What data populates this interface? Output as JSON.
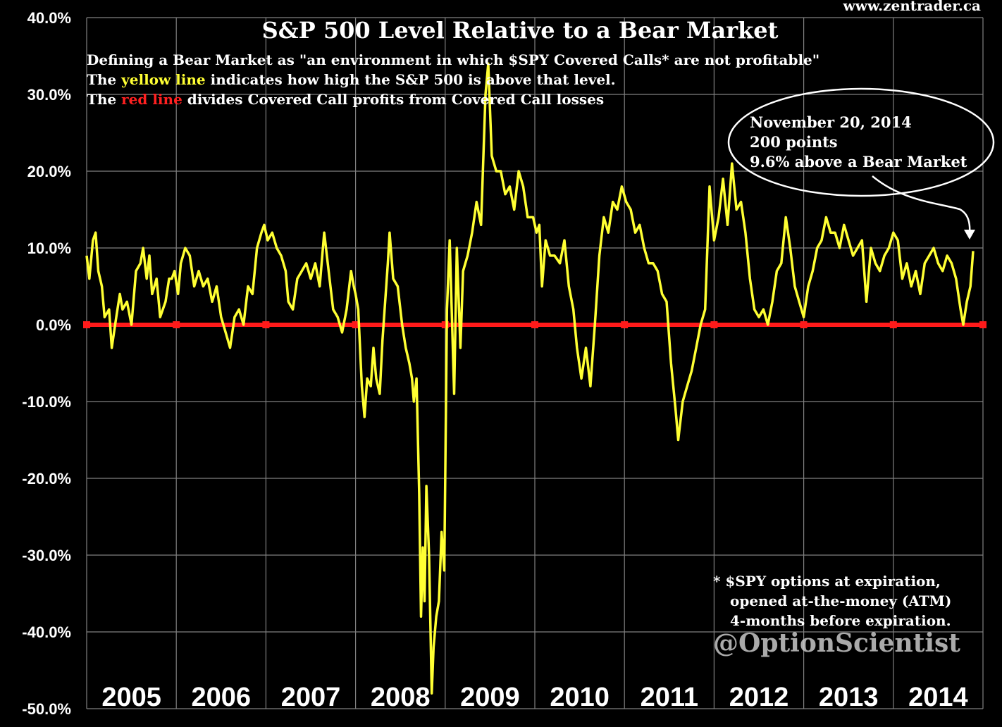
{
  "source": "www.zentrader.ca",
  "subtitle": {
    "line1": "Defining a Bear Market as \"an environment in which $SPY Covered Calls* are not profitable\"",
    "line2_pre": "The ",
    "line2_hl": "yellow line",
    "line2_post": " indicates how high the S&P 500 is above that level.",
    "line3_pre": "The ",
    "line3_hl": "red line",
    "line3_post": " divides Covered Call profits from Covered Call losses"
  },
  "annotation": {
    "line1": "November 20, 2014",
    "line2": "200 points",
    "line3": "9.6% above a Bear Market"
  },
  "footnote": {
    "line1": "* $SPY options at expiration,",
    "line2": "opened at-the-money (ATM)",
    "line3": "4-months before expiration."
  },
  "watermark": "@OptionScientist",
  "colors": {
    "background": "#000000",
    "series": "#ffff33",
    "zero_line": "#ff1a1a",
    "grid": "#808080"
  },
  "chart_data": {
    "type": "line",
    "title": "S&P 500 Level Relative to a Bear Market",
    "xlabel": "",
    "ylabel": "",
    "ylim": [
      -50,
      40
    ],
    "xlim": [
      2005,
      2015
    ],
    "y_ticks": [
      "40.0%",
      "30.0%",
      "20.0%",
      "10.0%",
      "0.0%",
      "-10.0%",
      "-20.0%",
      "-30.0%",
      "-40.0%",
      "-50.0%"
    ],
    "y_tick_values": [
      40,
      30,
      20,
      10,
      0,
      -10,
      -20,
      -30,
      -40,
      -50
    ],
    "x_labels": [
      "2005",
      "2006",
      "2007",
      "2008",
      "2009",
      "2010",
      "2011",
      "2012",
      "2013",
      "2014"
    ],
    "reference_line": {
      "name": "red line",
      "value": 0
    },
    "series": [
      {
        "name": "yellow line",
        "points": [
          [
            2005.0,
            9
          ],
          [
            2005.03,
            6
          ],
          [
            2005.07,
            11
          ],
          [
            2005.1,
            12
          ],
          [
            2005.13,
            7
          ],
          [
            2005.17,
            5
          ],
          [
            2005.2,
            1
          ],
          [
            2005.25,
            2
          ],
          [
            2005.28,
            -3
          ],
          [
            2005.33,
            1
          ],
          [
            2005.37,
            4
          ],
          [
            2005.4,
            2
          ],
          [
            2005.45,
            3
          ],
          [
            2005.5,
            0
          ],
          [
            2005.55,
            7
          ],
          [
            2005.6,
            8
          ],
          [
            2005.63,
            10
          ],
          [
            2005.67,
            6
          ],
          [
            2005.7,
            9
          ],
          [
            2005.73,
            4
          ],
          [
            2005.78,
            6
          ],
          [
            2005.82,
            1
          ],
          [
            2005.88,
            3
          ],
          [
            2005.92,
            6
          ],
          [
            2005.95,
            6
          ],
          [
            2005.98,
            7
          ],
          [
            2006.02,
            4
          ],
          [
            2006.05,
            8
          ],
          [
            2006.1,
            10
          ],
          [
            2006.15,
            9
          ],
          [
            2006.2,
            5
          ],
          [
            2006.25,
            7
          ],
          [
            2006.3,
            5
          ],
          [
            2006.35,
            6
          ],
          [
            2006.4,
            3
          ],
          [
            2006.45,
            5
          ],
          [
            2006.5,
            1
          ],
          [
            2006.55,
            -1
          ],
          [
            2006.6,
            -3
          ],
          [
            2006.65,
            1
          ],
          [
            2006.7,
            2
          ],
          [
            2006.75,
            0
          ],
          [
            2006.8,
            5
          ],
          [
            2006.85,
            4
          ],
          [
            2006.9,
            10
          ],
          [
            2006.95,
            12
          ],
          [
            2006.98,
            13
          ],
          [
            2007.02,
            11
          ],
          [
            2007.07,
            12
          ],
          [
            2007.12,
            10
          ],
          [
            2007.17,
            9
          ],
          [
            2007.22,
            7
          ],
          [
            2007.25,
            3
          ],
          [
            2007.3,
            2
          ],
          [
            2007.35,
            6
          ],
          [
            2007.4,
            7
          ],
          [
            2007.45,
            8
          ],
          [
            2007.5,
            6
          ],
          [
            2007.55,
            8
          ],
          [
            2007.6,
            5
          ],
          [
            2007.65,
            12
          ],
          [
            2007.7,
            7
          ],
          [
            2007.75,
            2
          ],
          [
            2007.8,
            1
          ],
          [
            2007.85,
            -1
          ],
          [
            2007.9,
            2
          ],
          [
            2007.95,
            7
          ],
          [
            2007.98,
            5
          ],
          [
            2008.0,
            4
          ],
          [
            2008.03,
            2
          ],
          [
            2008.07,
            -8
          ],
          [
            2008.1,
            -12
          ],
          [
            2008.13,
            -7
          ],
          [
            2008.17,
            -8
          ],
          [
            2008.2,
            -3
          ],
          [
            2008.23,
            -7
          ],
          [
            2008.27,
            -9
          ],
          [
            2008.3,
            -2
          ],
          [
            2008.33,
            3
          ],
          [
            2008.36,
            8
          ],
          [
            2008.38,
            12
          ],
          [
            2008.42,
            6
          ],
          [
            2008.47,
            5
          ],
          [
            2008.52,
            0
          ],
          [
            2008.56,
            -3
          ],
          [
            2008.6,
            -5
          ],
          [
            2008.63,
            -7
          ],
          [
            2008.65,
            -10
          ],
          [
            2008.68,
            -7
          ],
          [
            2008.71,
            -22
          ],
          [
            2008.73,
            -38
          ],
          [
            2008.75,
            -29
          ],
          [
            2008.77,
            -36
          ],
          [
            2008.79,
            -21
          ],
          [
            2008.82,
            -30
          ],
          [
            2008.85,
            -48
          ],
          [
            2008.87,
            -42
          ],
          [
            2008.9,
            -38
          ],
          [
            2008.93,
            -36
          ],
          [
            2008.96,
            -27
          ],
          [
            2008.99,
            -32
          ],
          [
            2009.02,
            2
          ],
          [
            2009.05,
            11
          ],
          [
            2009.1,
            -9
          ],
          [
            2009.13,
            10
          ],
          [
            2009.17,
            -3
          ],
          [
            2009.2,
            7
          ],
          [
            2009.25,
            9
          ],
          [
            2009.3,
            12
          ],
          [
            2009.35,
            16
          ],
          [
            2009.4,
            13
          ],
          [
            2009.45,
            30
          ],
          [
            2009.48,
            34
          ],
          [
            2009.52,
            22
          ],
          [
            2009.57,
            20
          ],
          [
            2009.62,
            20
          ],
          [
            2009.67,
            17
          ],
          [
            2009.72,
            18
          ],
          [
            2009.77,
            15
          ],
          [
            2009.82,
            20
          ],
          [
            2009.87,
            18
          ],
          [
            2009.92,
            14
          ],
          [
            2009.98,
            14
          ],
          [
            2010.02,
            12
          ],
          [
            2010.05,
            13
          ],
          [
            2010.08,
            5
          ],
          [
            2010.12,
            11
          ],
          [
            2010.17,
            9
          ],
          [
            2010.22,
            9
          ],
          [
            2010.28,
            8
          ],
          [
            2010.33,
            11
          ],
          [
            2010.38,
            5
          ],
          [
            2010.43,
            2
          ],
          [
            2010.47,
            -3
          ],
          [
            2010.52,
            -7
          ],
          [
            2010.57,
            -3
          ],
          [
            2010.62,
            -8
          ],
          [
            2010.67,
            0
          ],
          [
            2010.72,
            9
          ],
          [
            2010.77,
            14
          ],
          [
            2010.82,
            12
          ],
          [
            2010.87,
            16
          ],
          [
            2010.92,
            15
          ],
          [
            2010.97,
            18
          ],
          [
            2011.02,
            16
          ],
          [
            2011.07,
            15
          ],
          [
            2011.12,
            12
          ],
          [
            2011.17,
            13
          ],
          [
            2011.22,
            10
          ],
          [
            2011.27,
            8
          ],
          [
            2011.32,
            8
          ],
          [
            2011.37,
            7
          ],
          [
            2011.42,
            4
          ],
          [
            2011.47,
            3
          ],
          [
            2011.52,
            -5
          ],
          [
            2011.57,
            -11
          ],
          [
            2011.6,
            -15
          ],
          [
            2011.65,
            -10
          ],
          [
            2011.7,
            -8
          ],
          [
            2011.75,
            -6
          ],
          [
            2011.8,
            -3
          ],
          [
            2011.85,
            0
          ],
          [
            2011.9,
            2
          ],
          [
            2011.95,
            18
          ],
          [
            2012.0,
            11
          ],
          [
            2012.05,
            14
          ],
          [
            2012.1,
            19
          ],
          [
            2012.15,
            13
          ],
          [
            2012.2,
            21
          ],
          [
            2012.25,
            15
          ],
          [
            2012.3,
            16
          ],
          [
            2012.35,
            12
          ],
          [
            2012.4,
            6
          ],
          [
            2012.45,
            2
          ],
          [
            2012.5,
            1
          ],
          [
            2012.55,
            2
          ],
          [
            2012.6,
            0
          ],
          [
            2012.65,
            3
          ],
          [
            2012.7,
            7
          ],
          [
            2012.75,
            8
          ],
          [
            2012.8,
            14
          ],
          [
            2012.85,
            10
          ],
          [
            2012.9,
            5
          ],
          [
            2012.95,
            3
          ],
          [
            2013.0,
            1
          ],
          [
            2013.05,
            5
          ],
          [
            2013.1,
            7
          ],
          [
            2013.15,
            10
          ],
          [
            2013.2,
            11
          ],
          [
            2013.25,
            14
          ],
          [
            2013.3,
            12
          ],
          [
            2013.35,
            12
          ],
          [
            2013.4,
            10
          ],
          [
            2013.45,
            13
          ],
          [
            2013.5,
            11
          ],
          [
            2013.55,
            9
          ],
          [
            2013.6,
            10
          ],
          [
            2013.65,
            11
          ],
          [
            2013.7,
            3
          ],
          [
            2013.75,
            10
          ],
          [
            2013.8,
            8
          ],
          [
            2013.85,
            7
          ],
          [
            2013.9,
            9
          ],
          [
            2013.95,
            10
          ],
          [
            2014.0,
            12
          ],
          [
            2014.05,
            11
          ],
          [
            2014.1,
            6
          ],
          [
            2014.15,
            8
          ],
          [
            2014.2,
            5
          ],
          [
            2014.25,
            7
          ],
          [
            2014.3,
            4
          ],
          [
            2014.35,
            8
          ],
          [
            2014.4,
            9
          ],
          [
            2014.45,
            10
          ],
          [
            2014.5,
            8
          ],
          [
            2014.55,
            7
          ],
          [
            2014.6,
            9
          ],
          [
            2014.65,
            8
          ],
          [
            2014.7,
            6
          ],
          [
            2014.75,
            2
          ],
          [
            2014.78,
            0
          ],
          [
            2014.82,
            3
          ],
          [
            2014.86,
            5
          ],
          [
            2014.89,
            9.6
          ]
        ]
      }
    ]
  }
}
